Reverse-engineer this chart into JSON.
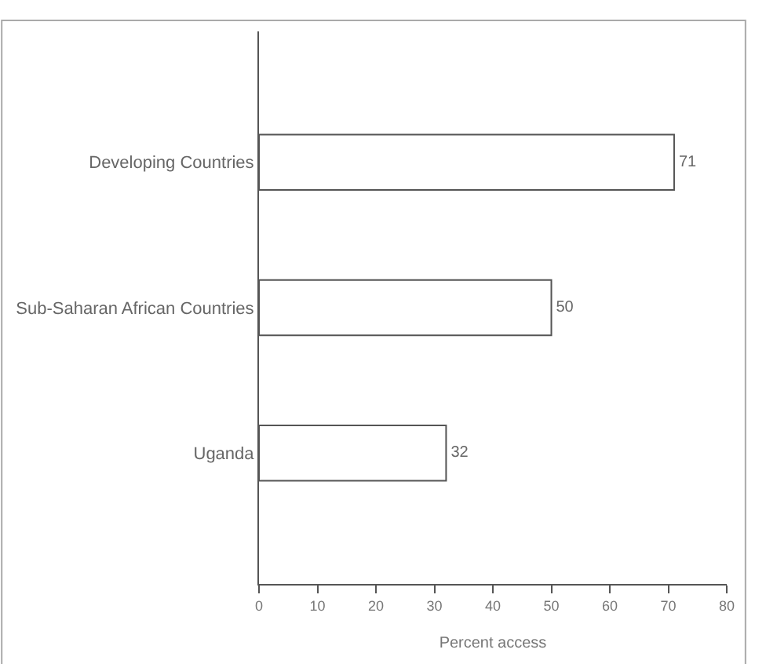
{
  "chart_data": {
    "type": "bar",
    "orientation": "horizontal",
    "xlabel": "Percent access",
    "categories": [
      "Developing Countries",
      "Sub-Saharan African Countries",
      "Uganda"
    ],
    "values": [
      71,
      50,
      32
    ],
    "color": "#ffffff",
    "data_labels": true,
    "xlim": [
      0,
      80
    ],
    "xticks": [
      0,
      10,
      20,
      30,
      40,
      50,
      60,
      70,
      80
    ]
  }
}
